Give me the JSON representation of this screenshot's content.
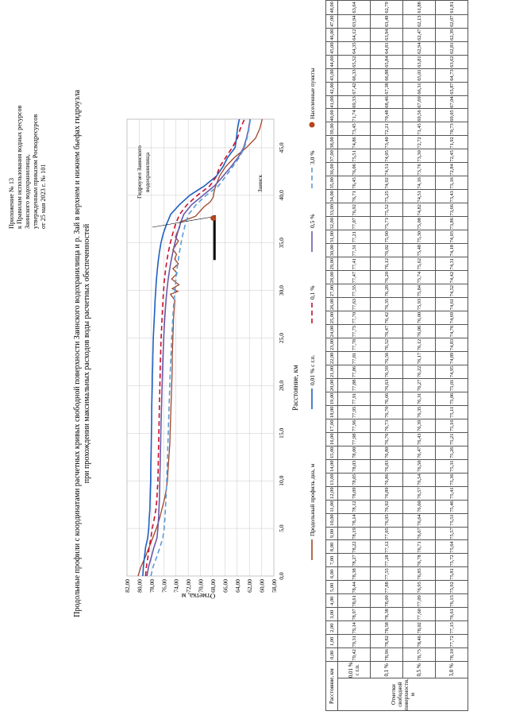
{
  "appendix": {
    "lines": [
      "Приложение № 13",
      "к Правилам использования водных ресурсов",
      "Заинского водохранилища,",
      "утвержденным приказом Росводресурсов",
      "от 25 мая 2023 г. № 101"
    ]
  },
  "title": {
    "line1": "Продольные профили с координатами расчетных кривых свободной поверхности Заинского водохранилища и р. Зай в верхнем и нижнем бьефах гидроузла",
    "line2": "при прохождении максимальных расходов воды расчетных обеспеченностей"
  },
  "annotations": {
    "dam_label_1": "Гидроузел Заинского",
    "dam_label_2": "водохранилища",
    "town": "Заинск"
  },
  "table": {
    "header_distance": "Расстояние, км",
    "group_label": "Отметки свободной поверхности, м",
    "rows": [
      "0,01 % с г.п.",
      "0,1 %",
      "0,5 %",
      "3,0 %"
    ]
  },
  "chart_data": {
    "type": "line",
    "xlabel": "Расстояние, км",
    "ylabel": "Отметка, м",
    "xlim": [
      0,
      48
    ],
    "ylim": [
      58,
      82
    ],
    "x_ticks": [
      "0,0",
      "5,0",
      "10,0",
      "15,0",
      "20,0",
      "25,0",
      "30,0",
      "35,0",
      "40,0",
      "45,0"
    ],
    "y_ticks": [
      "58,00",
      "60,00",
      "62,00",
      "64,00",
      "66,00",
      "68,00",
      "70,00",
      "72,00",
      "74,00",
      "76,00",
      "78,00",
      "80,00",
      "82,00"
    ],
    "grid": true,
    "legend_position": "bottom",
    "dam": {
      "x": 37.9,
      "y_top": 67.7,
      "x_from": 33.2
    },
    "town_marker": {
      "x": 37.6,
      "y": 67.9
    },
    "x": [
      "0,00",
      "1,00",
      "2,00",
      "3,00",
      "4,00",
      "5,00",
      "6,00",
      "7,00",
      "8,00",
      "9,00",
      "10,00",
      "11,00",
      "12,00",
      "13,00",
      "14,00",
      "15,00",
      "16,00",
      "17,00",
      "18,00",
      "19,00",
      "20,00",
      "21,00",
      "22,00",
      "23,00",
      "24,00",
      "25,00",
      "26,00",
      "27,00",
      "28,00",
      "29,00",
      "30,00",
      "31,00",
      "32,00",
      "33,00",
      "34,00",
      "35,00",
      "36,00",
      "37,00",
      "38,00",
      "39,00",
      "40,00",
      "41,00",
      "42,00",
      "43,00",
      "44,00",
      "45,00",
      "46,00",
      "47,00",
      "48,00"
    ],
    "series": [
      {
        "name": "Продольный профиль дна, м",
        "color": "#a0452a",
        "style": "solid",
        "x": [
          0,
          1,
          2,
          3,
          4,
          5,
          6,
          7,
          8,
          9,
          10,
          11,
          12,
          13,
          14,
          15,
          16,
          17,
          18,
          19,
          20,
          21,
          22,
          23,
          24,
          25,
          26,
          27,
          28,
          29,
          29.6,
          29.9,
          30.2,
          30.6,
          31.2,
          31.8,
          32.3,
          32.8,
          33.3,
          33.8,
          34.3,
          34.8,
          35.2,
          35.6,
          36.1,
          36.6,
          37.2,
          37.8,
          38.3,
          38.8,
          39.3,
          39.8,
          40.3,
          41,
          42,
          43,
          44,
          45,
          46,
          47,
          48
        ],
        "y": [
          80.2,
          79.7,
          79.0,
          78.4,
          77.8,
          77.2,
          76.7,
          76.3,
          75.9,
          75.6,
          75.4,
          75.3,
          75.2,
          75.1,
          75.0,
          74.95,
          74.9,
          74.85,
          74.8,
          74.75,
          74.7,
          74.65,
          74.6,
          74.6,
          74.55,
          74.5,
          74.45,
          74.4,
          74.3,
          74.2,
          74.9,
          73.7,
          74.6,
          73.5,
          74.7,
          73.8,
          74.5,
          73.6,
          74.2,
          73.9,
          74.5,
          74.0,
          73.6,
          74.1,
          73.8,
          73.4,
          73.3,
          70.8,
          70.1,
          69.4,
          68.4,
          67.9,
          67.8,
          67.5,
          66.9,
          65.9,
          64.4,
          62.5,
          61.0,
          60.3,
          59.9
        ]
      },
      {
        "name": "0,01 % с г.п.",
        "color": "#1f5fbf",
        "style": "solid",
        "values": [
          79.42,
          79.31,
          79.14,
          78.97,
          78.61,
          78.44,
          78.38,
          78.27,
          78.22,
          78.19,
          78.14,
          78.12,
          78.09,
          78.05,
          78.03,
          78.0,
          77.98,
          77.96,
          77.95,
          77.91,
          77.88,
          77.86,
          77.81,
          77.78,
          77.75,
          77.7,
          77.63,
          77.55,
          77.47,
          77.41,
          77.31,
          77.21,
          77.07,
          76.92,
          76.71,
          76.45,
          76.06,
          75.51,
          74.86,
          73.45,
          71.74,
          69.33,
          67.42,
          66.33,
          65.52,
          64.35,
          64.12,
          63.94,
          63.64
        ]
      },
      {
        "name": "0,1 %",
        "color": "#c8102e",
        "style": "dash",
        "values": [
          78.96,
          78.82,
          78.58,
          78.38,
          78.09,
          77.88,
          77.55,
          77.28,
          77.12,
          77.05,
          76.95,
          76.92,
          76.89,
          76.86,
          76.83,
          76.8,
          76.76,
          76.73,
          76.7,
          76.66,
          76.63,
          76.59,
          76.56,
          76.52,
          76.47,
          76.42,
          76.35,
          76.28,
          76.2,
          76.12,
          76.02,
          75.9,
          75.73,
          75.52,
          75.25,
          74.92,
          74.51,
          74.05,
          73.4,
          72.21,
          70.48,
          68.46,
          67.38,
          66.88,
          65.84,
          64.81,
          63.94,
          63.49,
          62.79
        ]
      },
      {
        "name": "0,5 %",
        "color": "#6a5aa8",
        "style": "solid",
        "values": [
          78.75,
          78.46,
          78.02,
          77.6,
          77.09,
          76.95,
          76.85,
          76.78,
          76.71,
          76.67,
          76.64,
          76.6,
          76.57,
          76.54,
          76.5,
          76.47,
          76.43,
          76.39,
          76.35,
          76.31,
          76.27,
          76.22,
          76.17,
          76.12,
          76.06,
          76.0,
          75.93,
          75.84,
          75.74,
          75.62,
          75.48,
          75.3,
          75.08,
          74.82,
          74.51,
          74.16,
          73.76,
          73.3,
          72.72,
          71.45,
          69.56,
          67.69,
          66.31,
          65.01,
          63.81,
          62.94,
          62.47,
          62.13,
          61.88
        ]
      },
      {
        "name": "3,0 %",
        "color": "#5b9bd5",
        "style": "dash",
        "values": [
          78.1,
          77.72,
          77.15,
          76.61,
          76.15,
          75.92,
          75.81,
          75.72,
          75.64,
          75.57,
          75.51,
          75.46,
          75.41,
          75.36,
          75.31,
          75.26,
          75.21,
          75.16,
          75.11,
          75.06,
          75.01,
          74.95,
          74.89,
          74.83,
          74.76,
          74.69,
          74.61,
          74.52,
          74.42,
          74.31,
          74.18,
          74.03,
          73.86,
          73.66,
          73.43,
          73.16,
          72.84,
          72.45,
          71.92,
          70.73,
          69.05,
          67.04,
          65.87,
          64.73,
          63.62,
          62.81,
          62.39,
          62.07,
          61.81
        ]
      }
    ],
    "legend_extra": "Населенные пункты"
  }
}
